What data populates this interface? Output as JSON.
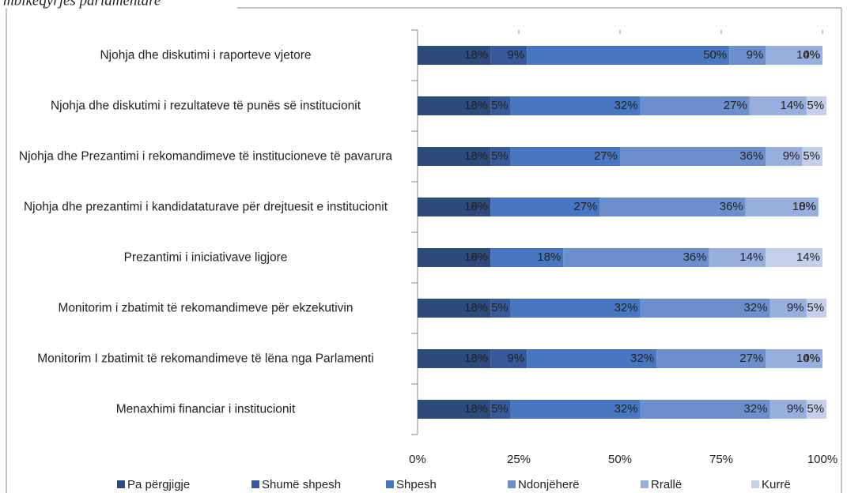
{
  "chart_data": {
    "type": "bar",
    "orientation": "horizontal",
    "stacked": true,
    "title": "mbikëqyrjes parlamentare",
    "categories": [
      "Njohja dhe diskutimi i raporteve vjetore",
      "Njohja dhe diskutimi i rezultateve të punës së institucionit",
      "Njohja dhe Prezantimi i rekomandimeve të institucioneve të pavarura",
      "Njohja dhe prezantimi i kandidataturave për drejtuesit e institucionit",
      "Prezantimi i iniciativave ligjore",
      "Monitorim i zbatimit të rekomandimeve për ekzekutivin",
      "Monitorim I zbatimit të rekomandimeve të lëna nga Parlamenti",
      "Menaxhimi financiar i institucionit"
    ],
    "series": [
      {
        "name": "Pa përgjigje",
        "color": "#2e4a7d",
        "values": [
          18,
          18,
          18,
          18,
          18,
          18,
          18,
          18
        ],
        "value_labels": [
          "18%",
          "18%",
          "18%",
          "18%",
          "18%",
          "18%",
          "18%",
          "18%"
        ]
      },
      {
        "name": "Shumë shpesh",
        "color": "#37599a",
        "values": [
          9,
          5,
          5,
          0,
          0,
          5,
          9,
          5
        ],
        "value_labels": [
          "9%",
          "5%",
          "5%",
          "0%",
          "0%",
          "5%",
          "9%",
          "5%"
        ]
      },
      {
        "name": "Shpesh",
        "color": "#4677c0",
        "values": [
          50,
          32,
          27,
          27,
          18,
          32,
          32,
          32
        ],
        "value_labels": [
          "50%",
          "32%",
          "27%",
          "27%",
          "18%",
          "32%",
          "32%",
          "32%"
        ]
      },
      {
        "name": "Ndonjëherë",
        "color": "#6d90cc",
        "values": [
          9,
          27,
          36,
          36,
          36,
          32,
          27,
          32
        ],
        "value_labels": [
          "9%",
          "27%",
          "36%",
          "36%",
          "36%",
          "32%",
          "27%",
          "32%"
        ]
      },
      {
        "name": "Rrallë",
        "color": "#98aedc",
        "values": [
          14,
          14,
          9,
          18,
          14,
          9,
          14,
          9
        ],
        "value_labels": [
          "14%",
          "14%",
          "9%",
          "18%",
          "14%",
          "9%",
          "14%",
          "9%"
        ]
      },
      {
        "name": "Kurrë",
        "color": "#c4cfe9",
        "values": [
          0,
          5,
          5,
          0,
          14,
          5,
          0,
          5
        ],
        "value_labels": [
          "0%",
          "5%",
          "5%",
          "0%",
          "14%",
          "5%",
          "0%",
          "5%"
        ]
      }
    ],
    "xlim": [
      0,
      100
    ],
    "xticks": [
      {
        "value": 0,
        "label": "0%"
      },
      {
        "value": 25,
        "label": "25%"
      },
      {
        "value": 50,
        "label": "50%"
      },
      {
        "value": 75,
        "label": "75%"
      },
      {
        "value": 100,
        "label": "100%"
      }
    ],
    "legend": "bottom"
  }
}
